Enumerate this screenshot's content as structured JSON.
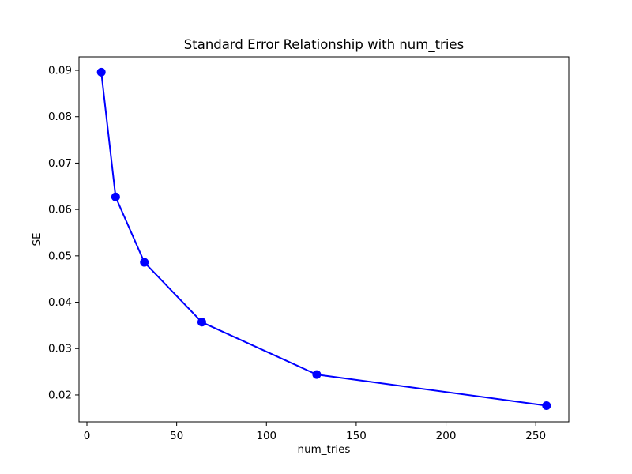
{
  "figure": {
    "background": "#ffffff",
    "frame_color": "#000000",
    "text_color": "#000000"
  },
  "chart_data": {
    "type": "line",
    "title": "Standard Error Relationship with num_tries",
    "xlabel": "num_tries",
    "ylabel": "SE",
    "series": [
      {
        "name": "SE",
        "x": [
          8,
          16,
          32,
          64,
          128,
          256
        ],
        "y": [
          0.0896,
          0.0627,
          0.0486,
          0.0357,
          0.0244,
          0.0177
        ],
        "color": "#0000ff",
        "marker": "circle",
        "line_width": 2,
        "marker_radius": 5.5
      }
    ],
    "xlim": [
      -4.4,
      268.4
    ],
    "ylim": [
      0.0142,
      0.0929
    ],
    "xticks": {
      "values": [
        0,
        50,
        100,
        150,
        200,
        250
      ],
      "labels": [
        "0",
        "50",
        "100",
        "150",
        "200",
        "250"
      ]
    },
    "yticks": {
      "values": [
        0.02,
        0.03,
        0.04,
        0.05,
        0.06,
        0.07,
        0.08,
        0.09
      ],
      "labels": [
        "0.02",
        "0.03",
        "0.04",
        "0.05",
        "0.06",
        "0.07",
        "0.08",
        "0.09"
      ]
    },
    "grid": false,
    "legend": null
  }
}
